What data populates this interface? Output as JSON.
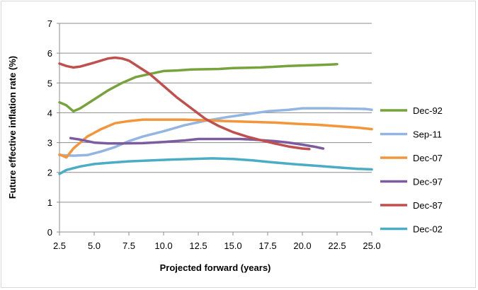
{
  "chart_data": {
    "type": "line",
    "xlabel": "Projected forward (years)",
    "ylabel": "Future effective inflation rate (%)",
    "xlim": [
      2.5,
      25.0
    ],
    "ylim": [
      0,
      7
    ],
    "xticks": [
      "2.5",
      "5.0",
      "7.5",
      "10.0",
      "12.5",
      "15.0",
      "17.5",
      "20.0",
      "22.5",
      "25.0"
    ],
    "yticks": [
      "0",
      "1",
      "2",
      "3",
      "4",
      "5",
      "6",
      "7"
    ],
    "grid": "horizontal",
    "legend_position": "right",
    "series": [
      {
        "name": "Dec-92",
        "color": "#77a33c",
        "points": [
          [
            2.5,
            4.35
          ],
          [
            3.0,
            4.25
          ],
          [
            3.5,
            4.05
          ],
          [
            4.0,
            4.15
          ],
          [
            5.0,
            4.45
          ],
          [
            6.0,
            4.75
          ],
          [
            7.0,
            5.0
          ],
          [
            8.0,
            5.2
          ],
          [
            9.0,
            5.3
          ],
          [
            10.0,
            5.4
          ],
          [
            11.0,
            5.42
          ],
          [
            12.0,
            5.45
          ],
          [
            14.0,
            5.47
          ],
          [
            15.0,
            5.5
          ],
          [
            17.0,
            5.52
          ],
          [
            19.0,
            5.57
          ],
          [
            21.0,
            5.6
          ],
          [
            22.0,
            5.62
          ],
          [
            22.5,
            5.63
          ]
        ]
      },
      {
        "name": "Sep-11",
        "color": "#93b5e1",
        "points": [
          [
            2.5,
            2.58
          ],
          [
            3.5,
            2.56
          ],
          [
            4.5,
            2.58
          ],
          [
            5.5,
            2.7
          ],
          [
            6.5,
            2.85
          ],
          [
            7.5,
            3.05
          ],
          [
            8.5,
            3.2
          ],
          [
            10.0,
            3.38
          ],
          [
            11.5,
            3.58
          ],
          [
            13.0,
            3.73
          ],
          [
            14.5,
            3.85
          ],
          [
            16.0,
            3.95
          ],
          [
            17.5,
            4.05
          ],
          [
            19.0,
            4.1
          ],
          [
            20.0,
            4.15
          ],
          [
            22.0,
            4.15
          ],
          [
            24.5,
            4.13
          ],
          [
            25.0,
            4.1
          ]
        ]
      },
      {
        "name": "Dec-07",
        "color": "#f3953a",
        "points": [
          [
            2.5,
            2.6
          ],
          [
            3.0,
            2.5
          ],
          [
            3.5,
            2.8
          ],
          [
            4.5,
            3.2
          ],
          [
            5.5,
            3.45
          ],
          [
            6.5,
            3.65
          ],
          [
            7.5,
            3.72
          ],
          [
            8.5,
            3.77
          ],
          [
            10.0,
            3.77
          ],
          [
            11.5,
            3.77
          ],
          [
            13.0,
            3.75
          ],
          [
            14.5,
            3.72
          ],
          [
            16.0,
            3.7
          ],
          [
            18.0,
            3.67
          ],
          [
            19.5,
            3.63
          ],
          [
            21.0,
            3.6
          ],
          [
            22.5,
            3.55
          ],
          [
            24.0,
            3.5
          ],
          [
            25.0,
            3.45
          ]
        ]
      },
      {
        "name": "Dec-97",
        "color": "#7d5ba0",
        "points": [
          [
            3.3,
            3.15
          ],
          [
            4.0,
            3.1
          ],
          [
            5.0,
            3.0
          ],
          [
            6.0,
            2.97
          ],
          [
            7.0,
            2.97
          ],
          [
            8.5,
            2.98
          ],
          [
            10.0,
            3.02
          ],
          [
            11.5,
            3.07
          ],
          [
            12.5,
            3.12
          ],
          [
            14.0,
            3.12
          ],
          [
            15.5,
            3.12
          ],
          [
            16.5,
            3.1
          ],
          [
            18.0,
            3.05
          ],
          [
            19.0,
            3.0
          ],
          [
            20.0,
            2.93
          ],
          [
            21.0,
            2.85
          ],
          [
            21.5,
            2.8
          ]
        ]
      },
      {
        "name": "Dec-87",
        "color": "#c0504d",
        "points": [
          [
            2.5,
            5.65
          ],
          [
            3.0,
            5.57
          ],
          [
            3.5,
            5.52
          ],
          [
            4.0,
            5.55
          ],
          [
            5.0,
            5.68
          ],
          [
            6.0,
            5.82
          ],
          [
            6.5,
            5.85
          ],
          [
            7.0,
            5.82
          ],
          [
            7.5,
            5.75
          ],
          [
            8.0,
            5.6
          ],
          [
            9.0,
            5.3
          ],
          [
            10.0,
            4.9
          ],
          [
            11.0,
            4.5
          ],
          [
            12.0,
            4.15
          ],
          [
            13.0,
            3.8
          ],
          [
            14.0,
            3.55
          ],
          [
            15.0,
            3.35
          ],
          [
            16.0,
            3.2
          ],
          [
            17.0,
            3.08
          ],
          [
            18.0,
            2.97
          ],
          [
            19.0,
            2.87
          ],
          [
            20.0,
            2.8
          ],
          [
            20.5,
            2.78
          ]
        ]
      },
      {
        "name": "Dec-02",
        "color": "#4aacc5",
        "points": [
          [
            2.5,
            1.95
          ],
          [
            3.0,
            2.08
          ],
          [
            4.0,
            2.2
          ],
          [
            5.0,
            2.28
          ],
          [
            6.0,
            2.32
          ],
          [
            7.5,
            2.37
          ],
          [
            9.0,
            2.4
          ],
          [
            10.5,
            2.43
          ],
          [
            12.0,
            2.45
          ],
          [
            13.5,
            2.47
          ],
          [
            15.0,
            2.45
          ],
          [
            16.5,
            2.4
          ],
          [
            18.0,
            2.33
          ],
          [
            19.5,
            2.27
          ],
          [
            21.0,
            2.22
          ],
          [
            22.5,
            2.17
          ],
          [
            24.0,
            2.12
          ],
          [
            25.0,
            2.1
          ]
        ]
      }
    ]
  }
}
